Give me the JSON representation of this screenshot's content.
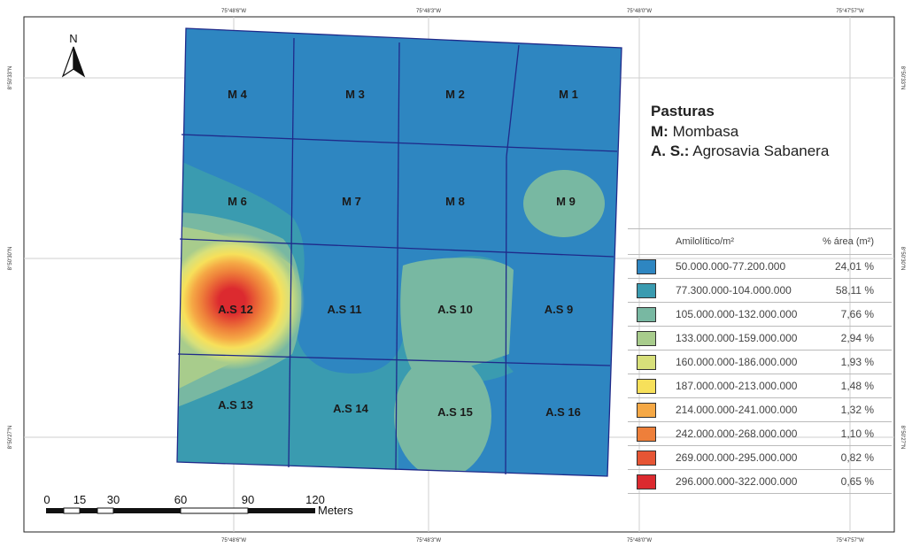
{
  "map": {
    "north_label": "N",
    "coords_top": [
      "75°48'6\"W",
      "75°48'3\"W",
      "75°48'0\"W",
      "75°47'57\"W"
    ],
    "coords_bottom": [
      "75°48'6\"W",
      "75°48'3\"W",
      "75°48'0\"W",
      "75°47'57\"W"
    ],
    "coords_left": [
      "8°50'33\"N",
      "8°50'30\"N",
      "8°50'27\"N"
    ],
    "coords_right": [
      "8°50'33\"N",
      "8°50'30\"N",
      "8°50'27\"N"
    ],
    "plots": {
      "m4": "M 4",
      "m3": "M 3",
      "m2": "M 2",
      "m1": "M 1",
      "m6": "M 6",
      "m7": "M 7",
      "m8": "M 8",
      "m9": "M 9",
      "as12": "A.S 12",
      "as11": "A.S 11",
      "as10": "A.S 10",
      "as9": "A.S 9",
      "as13": "A.S 13",
      "as14": "A.S 14",
      "as15": "A.S 15",
      "as16": "A.S 16"
    },
    "scale": {
      "ticks": [
        "0",
        "15",
        "30",
        "60",
        "90",
        "120"
      ],
      "unit": "Meters"
    }
  },
  "legend": {
    "title": "Pasturas",
    "items": [
      {
        "key": "M:",
        "value": "Mombasa"
      },
      {
        "key": "A. S.:",
        "value": "Agrosavia Sabanera"
      }
    ],
    "table_header": {
      "range": "Amilolítico/m²",
      "pct": "% área (m²)"
    },
    "classes": [
      {
        "range": "50.000.000-77.200.000",
        "pct": "24,01 %",
        "color": "#2e86c1"
      },
      {
        "range": "77.300.000-104.000.000",
        "pct": "58,11 %",
        "color": "#3a9bb0"
      },
      {
        "range": "105.000.000-132.000.000",
        "pct": "7,66 %",
        "color": "#78b8a2"
      },
      {
        "range": "133.000.000-159.000.000",
        "pct": "2,94 %",
        "color": "#a8cc8c"
      },
      {
        "range": "160.000.000-186.000.000",
        "pct": "1,93 %",
        "color": "#d8e07a"
      },
      {
        "range": "187.000.000-213.000.000",
        "pct": "1,48 %",
        "color": "#f7e05a"
      },
      {
        "range": "214.000.000-241.000.000",
        "pct": "1,32 %",
        "color": "#f5a845"
      },
      {
        "range": "242.000.000-268.000.000",
        "pct": "1,10 %",
        "color": "#ee7f3a"
      },
      {
        "range": "269.000.000-295.000.000",
        "pct": "0,82 %",
        "color": "#e65534"
      },
      {
        "range": "296.000.000-322.000.000",
        "pct": "0,65 %",
        "color": "#dc2a2f"
      }
    ]
  }
}
